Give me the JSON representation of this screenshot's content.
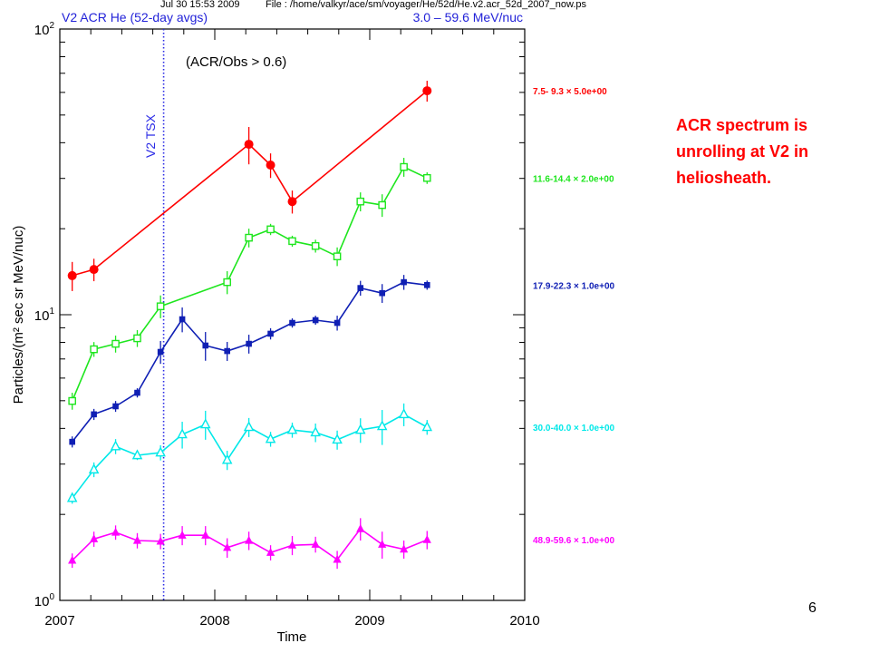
{
  "header": {
    "timestamp": "Jul 30 15:53 2009",
    "file": "File : /home/valkyr/ace/sm/voyager/He/52d/He.v2.acr_52d_2007_now.ps"
  },
  "annotation": {
    "lines": [
      "ACR spectrum is",
      "unrolling at V2 in",
      "heliosheath."
    ],
    "color": "#ff0000"
  },
  "page_number": "6",
  "chart_data": {
    "type": "line",
    "title": "V2 ACR He (52-day avgs)",
    "subtitle": "3.0 – 59.6 MeV/nuc",
    "title_color": "#2222d8",
    "annotation": "(ACR/Obs > 0.6)",
    "xlabel": "Time",
    "ylabel": "Particles/(m² sec sr MeV/nuc)",
    "xlim": [
      2007,
      2010
    ],
    "ylim": [
      1,
      100
    ],
    "yscale": "log",
    "grid": false,
    "legend_position": "right-outside",
    "xticks": [
      "2007",
      "2008",
      "2009",
      "2010"
    ],
    "yticks": [
      {
        "value": 1,
        "base": "10",
        "exp": "0"
      },
      {
        "value": 10,
        "base": "10",
        "exp": "1"
      },
      {
        "value": 100,
        "base": "10",
        "exp": "2"
      }
    ],
    "vline": {
      "x": 2007.67,
      "label": "V2 TSX",
      "style": "dotted",
      "color": "#2a2ae6"
    },
    "series": [
      {
        "name": "7.5- 9.3 × 5.0e+00",
        "color": "#ff0000",
        "marker": "filled-circle",
        "x": [
          2007.08,
          2007.22,
          2008.22,
          2008.36,
          2008.5,
          2009.37
        ],
        "y": [
          13.7,
          14.4,
          39.5,
          33.4,
          24.9,
          60.8
        ],
        "err": [
          1.6,
          1.3,
          5.9,
          3.3,
          2.3,
          5.1
        ]
      },
      {
        "name": "11.6-14.4 × 2.0e+00",
        "color": "#1ee61e",
        "marker": "open-square",
        "x": [
          2007.08,
          2007.22,
          2007.36,
          2007.5,
          2007.65,
          2008.08,
          2008.22,
          2008.36,
          2008.5,
          2008.65,
          2008.79,
          2008.94,
          2009.08,
          2009.22,
          2009.37
        ],
        "y": [
          4.99,
          7.57,
          7.91,
          8.27,
          10.7,
          13.0,
          18.6,
          19.9,
          18.1,
          17.4,
          16.0,
          24.9,
          24.2,
          32.9,
          30.1
        ],
        "err": [
          0.34,
          0.45,
          0.54,
          0.56,
          0.98,
          1.2,
          1.4,
          0.9,
          0.8,
          0.9,
          1.2,
          1.9,
          2.2,
          2.5,
          1.4
        ]
      },
      {
        "name": "17.9-22.3 × 1.0e+00",
        "color": "#0f1fb4",
        "marker": "filled-square",
        "x": [
          2007.08,
          2007.22,
          2007.36,
          2007.5,
          2007.65,
          2007.79,
          2007.94,
          2008.08,
          2008.22,
          2008.36,
          2008.5,
          2008.65,
          2008.79,
          2008.94,
          2009.08,
          2009.22,
          2009.37
        ],
        "y": [
          3.59,
          4.48,
          4.78,
          5.33,
          7.41,
          9.64,
          7.8,
          7.46,
          7.91,
          8.58,
          9.36,
          9.57,
          9.36,
          12.4,
          11.9,
          13.0,
          12.7
        ],
        "err": [
          0.16,
          0.2,
          0.21,
          0.2,
          0.68,
          0.96,
          0.9,
          0.57,
          0.6,
          0.39,
          0.35,
          0.35,
          0.56,
          0.74,
          0.9,
          0.78,
          0.47
        ]
      },
      {
        "name": "30.0-40.0 × 1.0e+00",
        "color": "#00e8e8",
        "marker": "open-triangle",
        "x": [
          2007.08,
          2007.22,
          2007.36,
          2007.5,
          2007.65,
          2007.79,
          2007.94,
          2008.08,
          2008.22,
          2008.36,
          2008.5,
          2008.65,
          2008.79,
          2008.94,
          2009.08,
          2009.22,
          2009.37
        ],
        "y": [
          2.28,
          2.87,
          3.46,
          3.22,
          3.29,
          3.81,
          4.13,
          3.1,
          4.04,
          3.67,
          3.95,
          3.87,
          3.65,
          3.95,
          4.07,
          4.48,
          4.04
        ],
        "err": [
          0.1,
          0.17,
          0.21,
          0.12,
          0.2,
          0.41,
          0.48,
          0.24,
          0.31,
          0.22,
          0.24,
          0.29,
          0.28,
          0.39,
          0.57,
          0.41,
          0.24
        ]
      },
      {
        "name": "48.9-59.6 × 1.0e+00",
        "color": "#ff00ff",
        "marker": "filled-triangle",
        "x": [
          2007.08,
          2007.22,
          2007.36,
          2007.5,
          2007.65,
          2007.79,
          2007.94,
          2008.08,
          2008.22,
          2008.36,
          2008.5,
          2008.65,
          2008.79,
          2008.94,
          2009.08,
          2009.22,
          2009.37
        ],
        "y": [
          1.38,
          1.64,
          1.73,
          1.62,
          1.61,
          1.69,
          1.69,
          1.53,
          1.62,
          1.47,
          1.56,
          1.57,
          1.39,
          1.78,
          1.57,
          1.51,
          1.63
        ],
        "err": [
          0.08,
          0.1,
          0.1,
          0.1,
          0.1,
          0.13,
          0.13,
          0.12,
          0.12,
          0.09,
          0.12,
          0.1,
          0.1,
          0.16,
          0.17,
          0.11,
          0.12
        ]
      }
    ]
  }
}
